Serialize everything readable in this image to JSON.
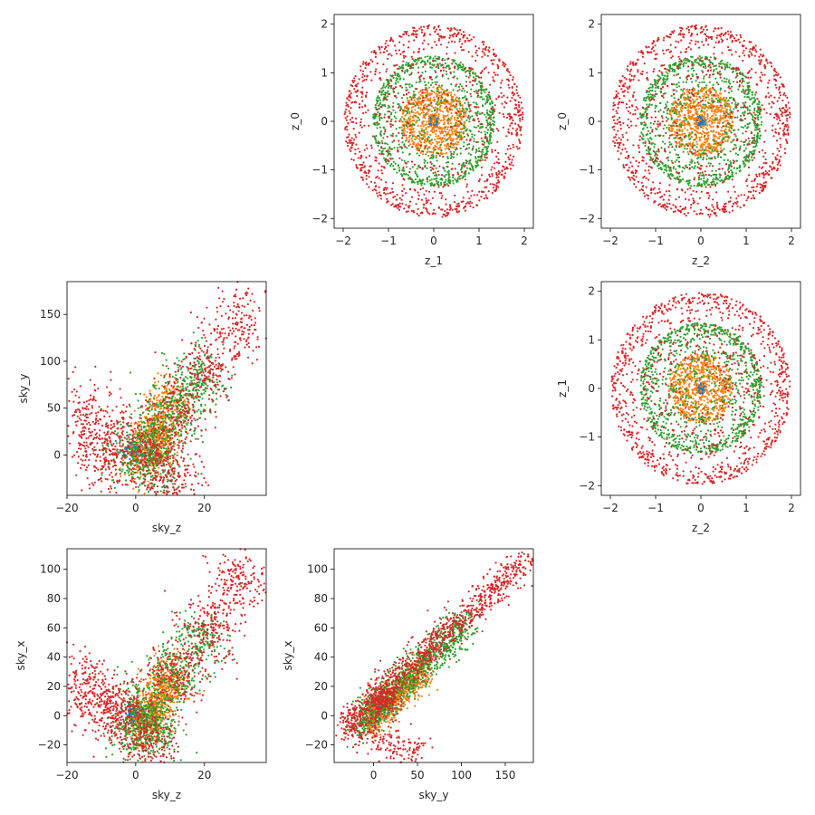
{
  "chart_data": [
    {
      "id": "z1_z0",
      "type": "scatter",
      "xlabel": "z_1",
      "ylabel": "z_0",
      "xlim": [
        -2.2,
        2.2
      ],
      "ylim": [
        -2.2,
        2.2
      ],
      "xticks": [
        -2,
        -1,
        0,
        1,
        2
      ],
      "yticks": [
        -2,
        -1,
        0,
        1,
        2
      ],
      "grid": false,
      "series": [
        {
          "shape": "disk",
          "r": [
            0,
            0.12
          ],
          "count": 70,
          "color": "#1f77b4"
        },
        {
          "shape": "disk",
          "r": [
            0.03,
            0.72
          ],
          "count": 700,
          "color": "#ff7f0e"
        },
        {
          "shape": "annulus",
          "r": [
            0.15,
            1.35
          ],
          "count": 1000,
          "color": "#2ca02c"
        },
        {
          "shape": "annulus",
          "r": [
            0.3,
            1.98
          ],
          "count": 1100,
          "color": "#d62728"
        }
      ]
    },
    {
      "id": "z2_z0",
      "type": "scatter",
      "xlabel": "z_2",
      "ylabel": "z_0",
      "xlim": [
        -2.2,
        2.2
      ],
      "ylim": [
        -2.2,
        2.2
      ],
      "xticks": [
        -2,
        -1,
        0,
        1,
        2
      ],
      "yticks": [
        -2,
        -1,
        0,
        1,
        2
      ],
      "grid": false,
      "series": [
        {
          "shape": "disk",
          "r": [
            0,
            0.12
          ],
          "count": 70,
          "color": "#1f77b4"
        },
        {
          "shape": "disk",
          "r": [
            0.03,
            0.72
          ],
          "count": 700,
          "color": "#ff7f0e"
        },
        {
          "shape": "annulus",
          "r": [
            0.15,
            1.35
          ],
          "count": 1000,
          "color": "#2ca02c"
        },
        {
          "shape": "annulus",
          "r": [
            0.3,
            1.98
          ],
          "count": 1100,
          "color": "#d62728"
        }
      ]
    },
    {
      "id": "skyz_skyy",
      "type": "scatter",
      "xlabel": "sky_z",
      "ylabel": "sky_y",
      "xlim": [
        -20,
        38
      ],
      "ylim": [
        -43,
        185
      ],
      "xticks": [
        -20,
        0,
        20
      ],
      "yticks": [
        0,
        50,
        100,
        150
      ],
      "grid": false,
      "series": [
        {
          "shape": "blob",
          "centers": [
            [
              0,
              5
            ]
          ],
          "spread": [
            2,
            5
          ],
          "count": 120,
          "color": "#1f77b4"
        },
        {
          "shape": "blob",
          "centers": [
            [
              10,
              55
            ],
            [
              5,
              25
            ],
            [
              2,
              0
            ],
            [
              6,
              15
            ]
          ],
          "spread": [
            3,
            14
          ],
          "count": 700,
          "color": "#ff7f0e"
        },
        {
          "shape": "blob",
          "centers": [
            [
              18,
              80
            ],
            [
              12,
              50
            ],
            [
              5,
              20
            ],
            [
              0,
              0
            ],
            [
              5,
              -10
            ]
          ],
          "spread": [
            4,
            18
          ],
          "count": 900,
          "color": "#2ca02c"
        },
        {
          "shape": "blob",
          "centers": [
            [
              30,
              140
            ],
            [
              22,
              95
            ],
            [
              12,
              50
            ],
            [
              -15,
              40
            ],
            [
              -10,
              -8
            ],
            [
              5,
              5
            ],
            [
              10,
              -25
            ],
            [
              -5,
              15
            ]
          ],
          "spread": [
            4,
            20
          ],
          "count": 1300,
          "color": "#d62728"
        }
      ]
    },
    {
      "id": "z2_z1",
      "type": "scatter",
      "xlabel": "z_2",
      "ylabel": "z_1",
      "xlim": [
        -2.2,
        2.2
      ],
      "ylim": [
        -2.2,
        2.2
      ],
      "xticks": [
        -2,
        -1,
        0,
        1,
        2
      ],
      "yticks": [
        -2,
        -1,
        0,
        1,
        2
      ],
      "grid": false,
      "series": [
        {
          "shape": "disk",
          "r": [
            0,
            0.12
          ],
          "count": 70,
          "color": "#1f77b4"
        },
        {
          "shape": "disk",
          "r": [
            0.03,
            0.72
          ],
          "count": 700,
          "color": "#ff7f0e"
        },
        {
          "shape": "annulus",
          "r": [
            0.15,
            1.35
          ],
          "count": 1000,
          "color": "#2ca02c"
        },
        {
          "shape": "annulus",
          "r": [
            0.3,
            1.98
          ],
          "count": 1100,
          "color": "#d62728"
        }
      ]
    },
    {
      "id": "skyz_skyx",
      "type": "scatter",
      "xlabel": "sky_z",
      "ylabel": "sky_x",
      "xlim": [
        -20,
        38
      ],
      "ylim": [
        -32,
        114
      ],
      "xticks": [
        -20,
        0,
        20
      ],
      "yticks": [
        -20,
        0,
        20,
        40,
        60,
        80,
        100
      ],
      "grid": false,
      "series": [
        {
          "shape": "blob",
          "centers": [
            [
              0,
              0
            ]
          ],
          "spread": [
            2,
            3
          ],
          "count": 120,
          "color": "#1f77b4"
        },
        {
          "shape": "blob",
          "centers": [
            [
              10,
              25
            ],
            [
              5,
              5
            ],
            [
              3,
              -5
            ],
            [
              7,
              15
            ]
          ],
          "spread": [
            3,
            8
          ],
          "count": 700,
          "color": "#ff7f0e"
        },
        {
          "shape": "blob",
          "centers": [
            [
              18,
              50
            ],
            [
              12,
              30
            ],
            [
              5,
              -8
            ],
            [
              0,
              -12
            ],
            [
              3,
              5
            ]
          ],
          "spread": [
            4,
            10
          ],
          "count": 900,
          "color": "#2ca02c"
        },
        {
          "shape": "blob",
          "centers": [
            [
              30,
              90
            ],
            [
              22,
              60
            ],
            [
              12,
              30
            ],
            [
              -15,
              20
            ],
            [
              -8,
              8
            ],
            [
              5,
              -22
            ],
            [
              -3,
              0
            ]
          ],
          "spread": [
            4,
            12
          ],
          "count": 1300,
          "color": "#d62728"
        }
      ]
    },
    {
      "id": "skyy_skyx",
      "type": "scatter",
      "xlabel": "sky_y",
      "ylabel": "sky_x",
      "xlim": [
        -45,
        182
      ],
      "ylim": [
        -32,
        114
      ],
      "xticks": [
        0,
        50,
        100,
        150
      ],
      "yticks": [
        -20,
        0,
        20,
        40,
        60,
        80,
        100
      ],
      "grid": false,
      "series": [
        {
          "shape": "band",
          "from": [
            -5,
            -2
          ],
          "to": [
            10,
            5
          ],
          "width": 4,
          "count": 120,
          "color": "#1f77b4"
        },
        {
          "shape": "band",
          "from": [
            -10,
            -5
          ],
          "to": [
            60,
            32
          ],
          "width": 6,
          "count": 700,
          "color": "#ff7f0e"
        },
        {
          "shape": "band",
          "from": [
            -20,
            -8
          ],
          "to": [
            110,
            65
          ],
          "width": 7,
          "count": 900,
          "color": "#2ca02c"
        },
        {
          "shape": "band",
          "from": [
            -35,
            -8
          ],
          "to": [
            175,
            107
          ],
          "width": 6,
          "count": 1300,
          "color": "#d62728",
          "extra": [
            [
              -30,
              -8,
              55,
              -26
            ],
            [
              0,
              12,
              25,
              12
            ]
          ]
        }
      ]
    }
  ]
}
